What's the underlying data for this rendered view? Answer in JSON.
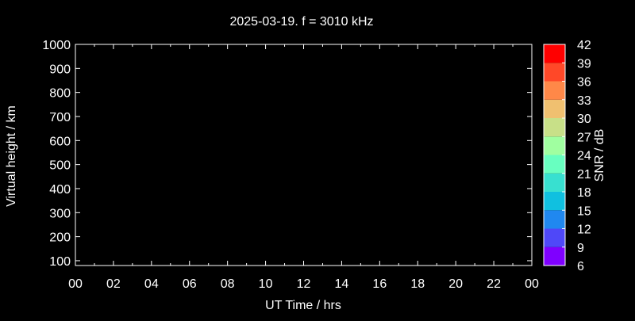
{
  "chart_data": {
    "type": "heatmap",
    "title": "2025-03-19. f = 3010 kHz",
    "xlabel": "UT Time / hrs",
    "ylabel": "Virtual height / km",
    "xlim": [
      0,
      24
    ],
    "ylim": [
      80,
      1000
    ],
    "x_ticks": [
      "00",
      "02",
      "04",
      "06",
      "08",
      "10",
      "12",
      "14",
      "16",
      "18",
      "20",
      "22",
      "00"
    ],
    "x_tick_values": [
      0,
      2,
      4,
      6,
      8,
      10,
      12,
      14,
      16,
      18,
      20,
      22,
      24
    ],
    "y_ticks": [
      100,
      200,
      300,
      400,
      500,
      600,
      700,
      800,
      900,
      1000
    ],
    "values": [],
    "grid": false,
    "colorbar": {
      "label": "SNR / dB",
      "range": [
        6,
        42
      ],
      "ticks": [
        6,
        9,
        12,
        15,
        18,
        21,
        24,
        27,
        30,
        33,
        36,
        39,
        42
      ],
      "colors": [
        "#7f00ff",
        "#4f48f8",
        "#2088f0",
        "#10c0e0",
        "#38e0d0",
        "#68ffc0",
        "#a0ffa0",
        "#c8e088",
        "#f0c070",
        "#ff8848",
        "#ff4828",
        "#ff0000"
      ]
    }
  }
}
